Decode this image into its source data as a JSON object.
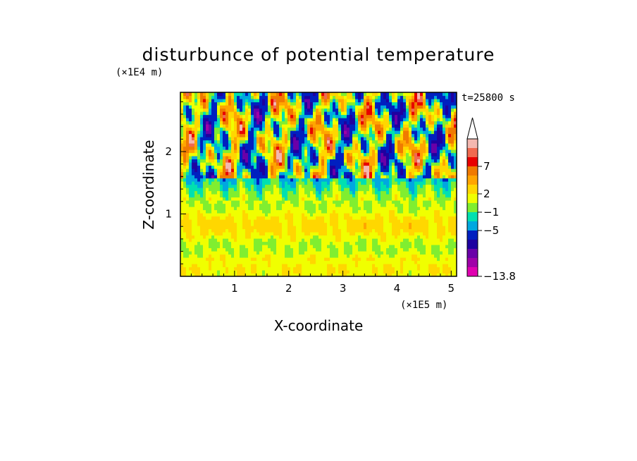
{
  "chart_data": {
    "type": "heatmap",
    "title": "disturbunce of potential temperature",
    "xlabel": "X-coordinate",
    "ylabel": "Z-coordinate",
    "x_unit": "(×1E5 m)",
    "y_unit": "(×1E4 m)",
    "time_label": "t=25800 s",
    "xlim": [
      0,
      5.1
    ],
    "ylim": [
      0,
      2.95
    ],
    "x_ticks": [
      "1",
      "2",
      "3",
      "4",
      "5"
    ],
    "x_tick_values": [
      1,
      2,
      3,
      4,
      5
    ],
    "y_ticks": [
      "1",
      "2"
    ],
    "y_tick_values": [
      1,
      2
    ],
    "colorbar": {
      "labels": [
        "7",
        "2",
        "−1",
        "−5",
        "−13.8"
      ],
      "label_values": [
        7,
        2,
        -1,
        -5,
        -13.8
      ],
      "colors": [
        "#f4b8b0",
        "#f06a50",
        "#e80000",
        "#f07a00",
        "#ffa500",
        "#ffd700",
        "#f0ff00",
        "#80ee30",
        "#00e0b0",
        "#00a8e0",
        "#0020c0",
        "#1e00a0",
        "#6a00a8",
        "#a000a8",
        "#e000b0"
      ]
    },
    "regions": [
      {
        "z_range": [
          0,
          1.2
        ],
        "description": "mostly positive weak disturbance (yellow/orange bands)"
      },
      {
        "z_range": [
          1.2,
          1.6
        ],
        "description": "near zero (green/cyan)"
      },
      {
        "z_range": [
          1.6,
          2.95
        ],
        "description": "alternating strong positive/negative cells (orange-red / blue-purple)"
      }
    ]
  }
}
